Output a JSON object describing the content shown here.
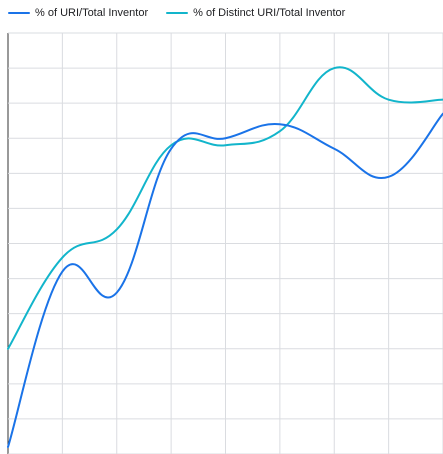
{
  "chart_data": {
    "type": "line",
    "title": "",
    "xlabel": "",
    "ylabel": "",
    "grid": true,
    "legend_position": "top-left",
    "x": [
      0,
      1,
      2,
      3,
      4,
      5,
      6,
      7,
      8
    ],
    "xlim": [
      0,
      8
    ],
    "ylim": [
      0,
      12
    ],
    "series": [
      {
        "name": "% of URI/Total Inventor",
        "color": "#1a73e8",
        "values": [
          0.2,
          5.2,
          4.6,
          8.7,
          9.0,
          9.4,
          8.7,
          7.9,
          9.7
        ]
      },
      {
        "name": "% of Distinct URI/Total Inventor",
        "color": "#12b5cb",
        "values": [
          3.0,
          5.6,
          6.4,
          8.8,
          8.8,
          9.2,
          11.0,
          10.1,
          10.1
        ]
      }
    ]
  }
}
